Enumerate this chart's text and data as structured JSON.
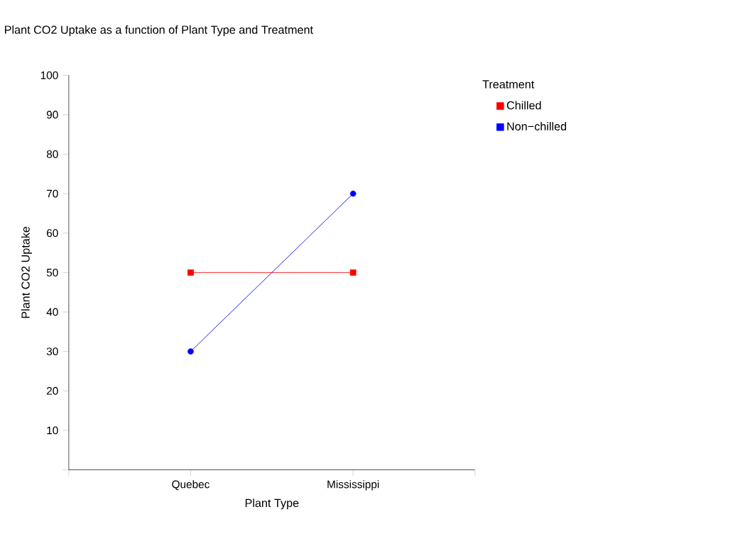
{
  "chart_data": {
    "type": "line",
    "title": "Plant CO2 Uptake as a function of Plant Type and Treatment",
    "xlabel": "Plant Type",
    "ylabel": "Plant CO2 Uptake",
    "legend_title": "Treatment",
    "legend": "right",
    "categories": [
      "Quebec",
      "Mississippi"
    ],
    "series": [
      {
        "name": "Chilled",
        "color": "#ff0000",
        "marker": "square",
        "values": [
          50,
          50
        ]
      },
      {
        "name": "Non−chilled",
        "color": "#0000ff",
        "marker": "circle",
        "values": [
          30,
          70
        ]
      }
    ],
    "ylim": [
      0,
      100
    ],
    "yticks": [
      {
        "value": 0,
        "label": null
      },
      10,
      20,
      30,
      40,
      50,
      60,
      70,
      80,
      90,
      100
    ],
    "line_style": "solid"
  }
}
